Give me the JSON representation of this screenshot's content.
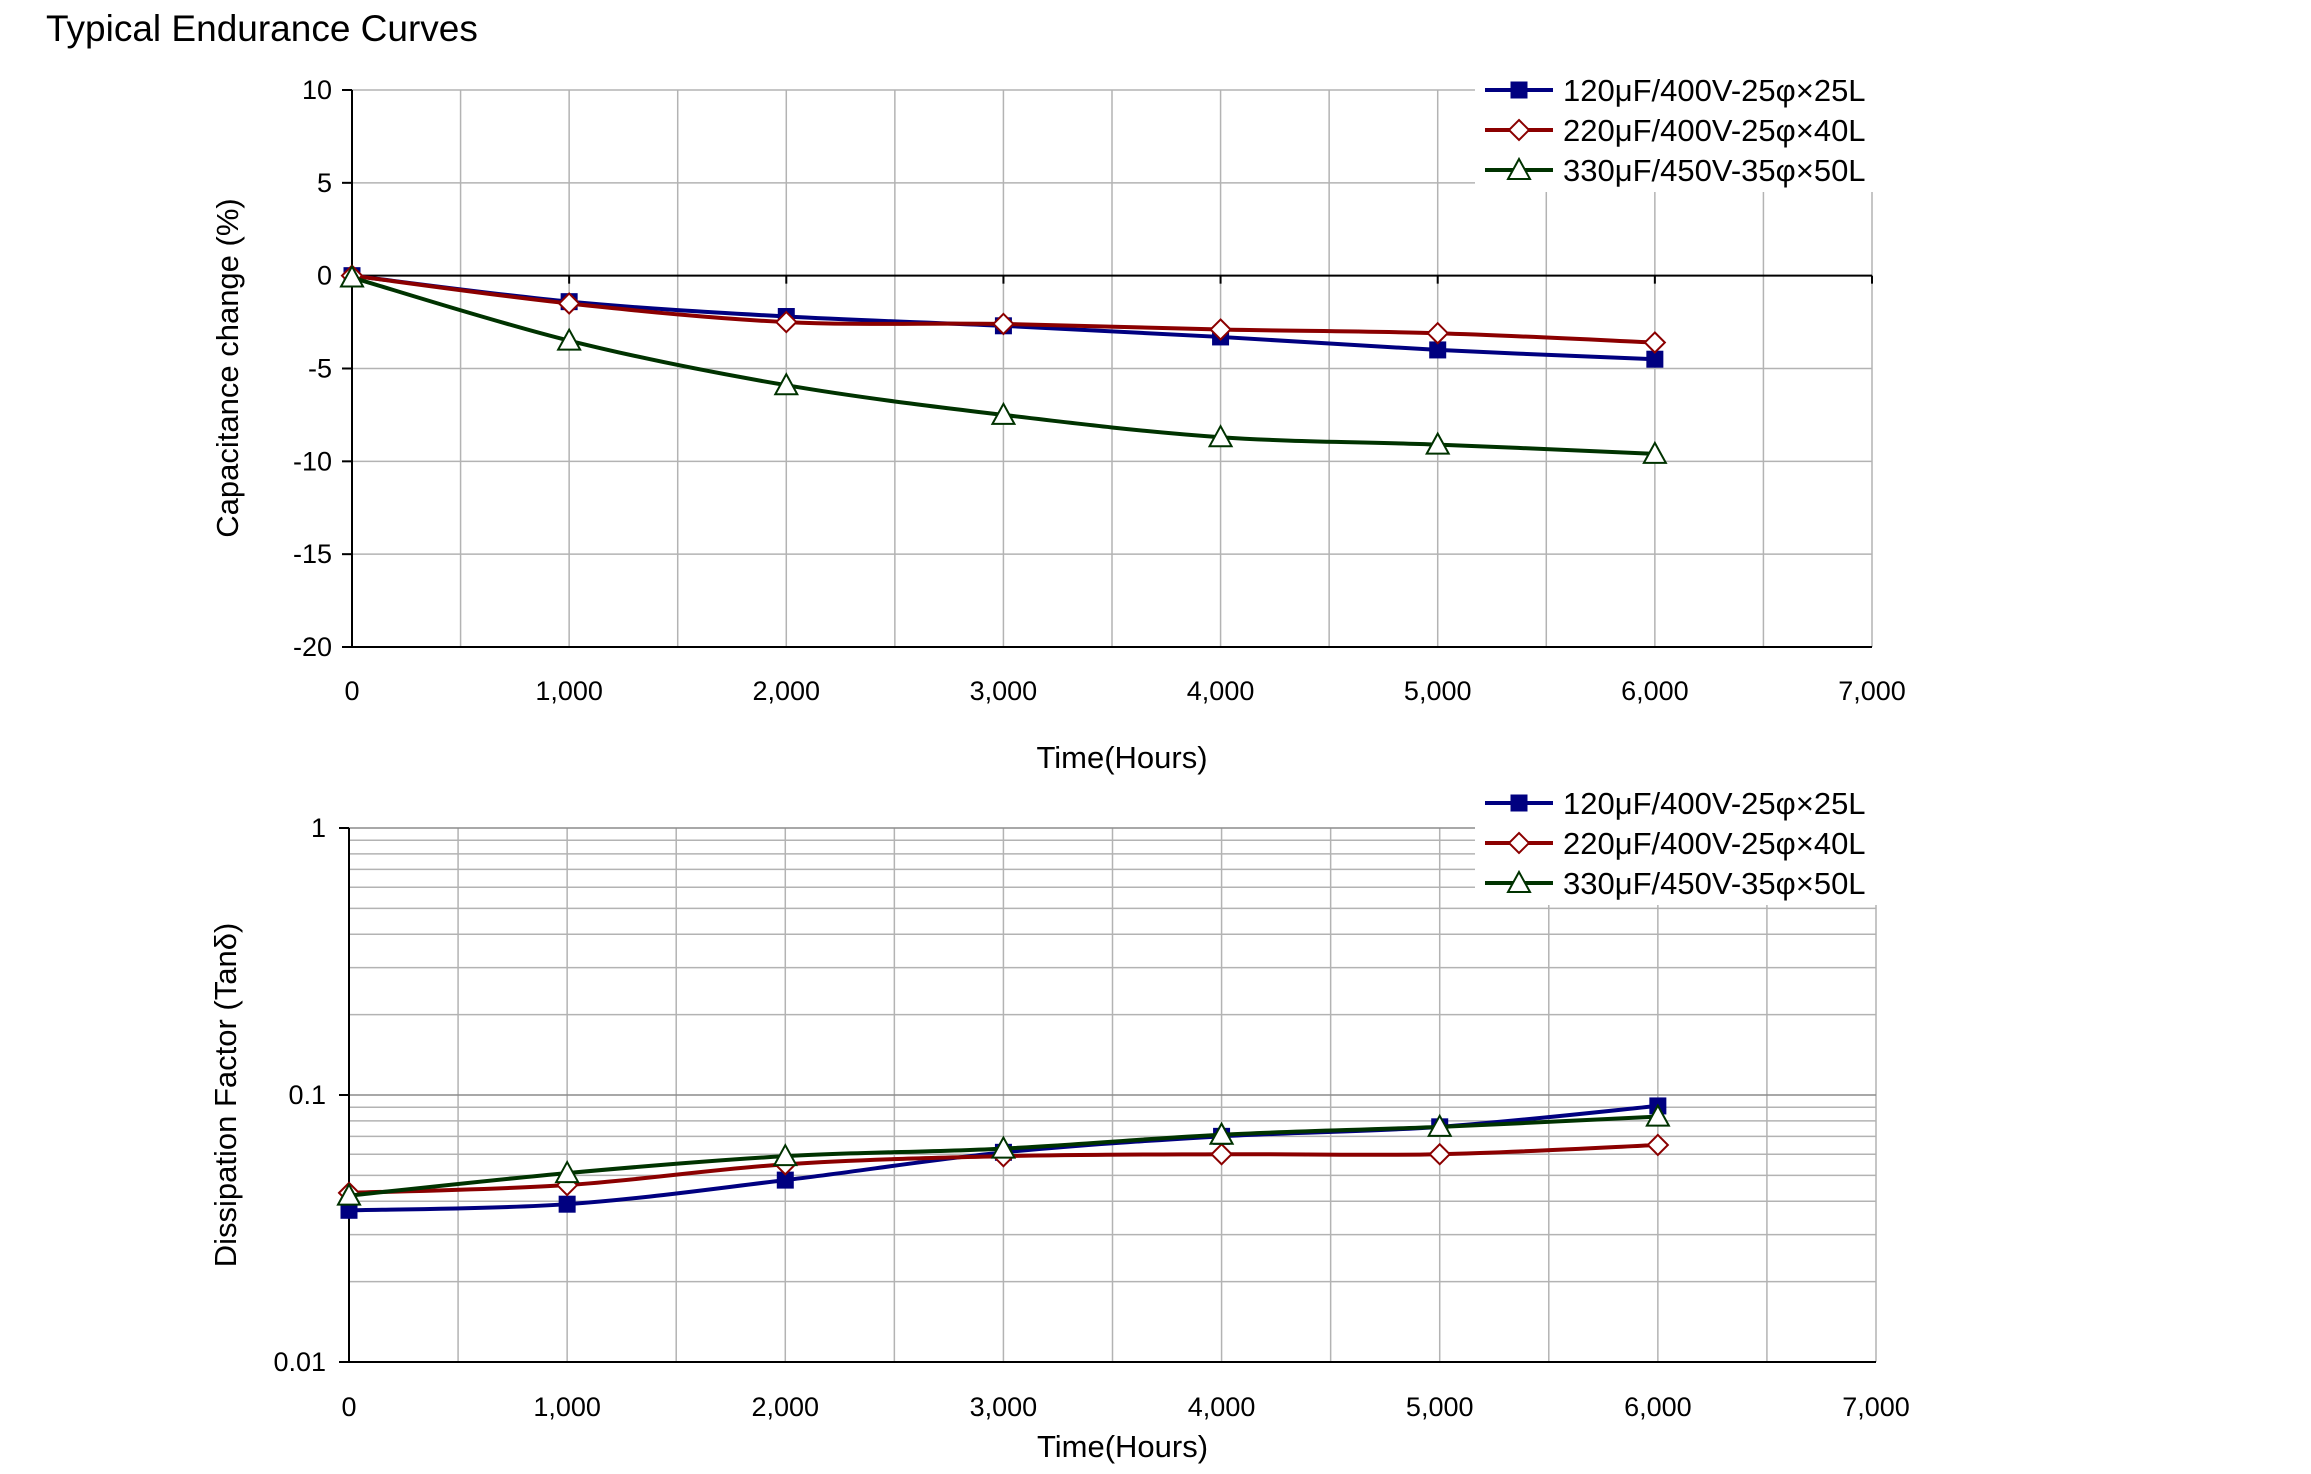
{
  "page_title": "Typical Endurance Curves",
  "colors": {
    "series1": "#000080",
    "series2": "#8B0000",
    "series3": "#003300",
    "grid": "#b3b3b3",
    "axis": "#000000"
  },
  "chart_data": [
    {
      "type": "line",
      "title": "",
      "xlabel": "Time(Hours)",
      "ylabel": "Capacitance change (%)",
      "xlim": [
        0,
        7000
      ],
      "ylim": [
        -20,
        10
      ],
      "y_scale": "linear",
      "x_ticks": [
        0,
        1000,
        2000,
        3000,
        4000,
        5000,
        6000,
        7000
      ],
      "x_tick_labels": [
        "0",
        "1,000",
        "2,000",
        "3,000",
        "4,000",
        "5,000",
        "6,000",
        "7,000"
      ],
      "y_ticks": [
        10,
        5,
        0,
        -5,
        -10,
        -15,
        -20
      ],
      "y_tick_labels": [
        "10",
        "5",
        "0",
        "-5",
        "-10",
        "-15",
        "-20"
      ],
      "grid": true,
      "legend_position": "top-right",
      "series": [
        {
          "name": "120μF/400V-25φ×25L",
          "marker": "square",
          "x": [
            0,
            1000,
            2000,
            3000,
            4000,
            5000,
            6000
          ],
          "y": [
            0,
            -1.4,
            -2.2,
            -2.7,
            -3.3,
            -4.0,
            -4.5
          ]
        },
        {
          "name": "220μF/400V-25φ×40L",
          "marker": "diamond",
          "x": [
            0,
            1000,
            2000,
            3000,
            4000,
            5000,
            6000
          ],
          "y": [
            0,
            -1.5,
            -2.5,
            -2.6,
            -2.9,
            -3.1,
            -3.6
          ]
        },
        {
          "name": "330μF/450V-35φ×50L",
          "marker": "triangle",
          "x": [
            0,
            1000,
            2000,
            3000,
            4000,
            5000,
            6000
          ],
          "y": [
            -0.1,
            -3.5,
            -5.9,
            -7.5,
            -8.7,
            -9.1,
            -9.6
          ]
        }
      ]
    },
    {
      "type": "line",
      "title": "",
      "xlabel": "Time(Hours)",
      "ylabel": "Dissipation Factor (Tanδ)",
      "xlim": [
        0,
        7000
      ],
      "ylim": [
        0.01,
        1
      ],
      "y_scale": "log",
      "x_ticks": [
        0,
        1000,
        2000,
        3000,
        4000,
        5000,
        6000,
        7000
      ],
      "x_tick_labels": [
        "0",
        "1,000",
        "2,000",
        "3,000",
        "4,000",
        "5,000",
        "6,000",
        "7,000"
      ],
      "y_ticks": [
        1,
        0.1,
        0.01
      ],
      "y_tick_labels": [
        "1",
        "0.1",
        "0.01"
      ],
      "grid": true,
      "legend_position": "top-right",
      "series": [
        {
          "name": "120μF/400V-25φ×25L",
          "marker": "square",
          "x": [
            0,
            1000,
            2000,
            3000,
            4000,
            5000,
            6000
          ],
          "y": [
            0.037,
            0.039,
            0.048,
            0.061,
            0.07,
            0.076,
            0.091
          ]
        },
        {
          "name": "220μF/400V-25φ×40L",
          "marker": "diamond",
          "x": [
            0,
            1000,
            2000,
            3000,
            4000,
            5000,
            6000
          ],
          "y": [
            0.043,
            0.046,
            0.055,
            0.059,
            0.06,
            0.06,
            0.065
          ]
        },
        {
          "name": "330μF/450V-35φ×50L",
          "marker": "triangle",
          "x": [
            0,
            1000,
            2000,
            3000,
            4000,
            5000,
            6000
          ],
          "y": [
            0.042,
            0.051,
            0.059,
            0.063,
            0.071,
            0.076,
            0.083
          ]
        }
      ]
    }
  ]
}
